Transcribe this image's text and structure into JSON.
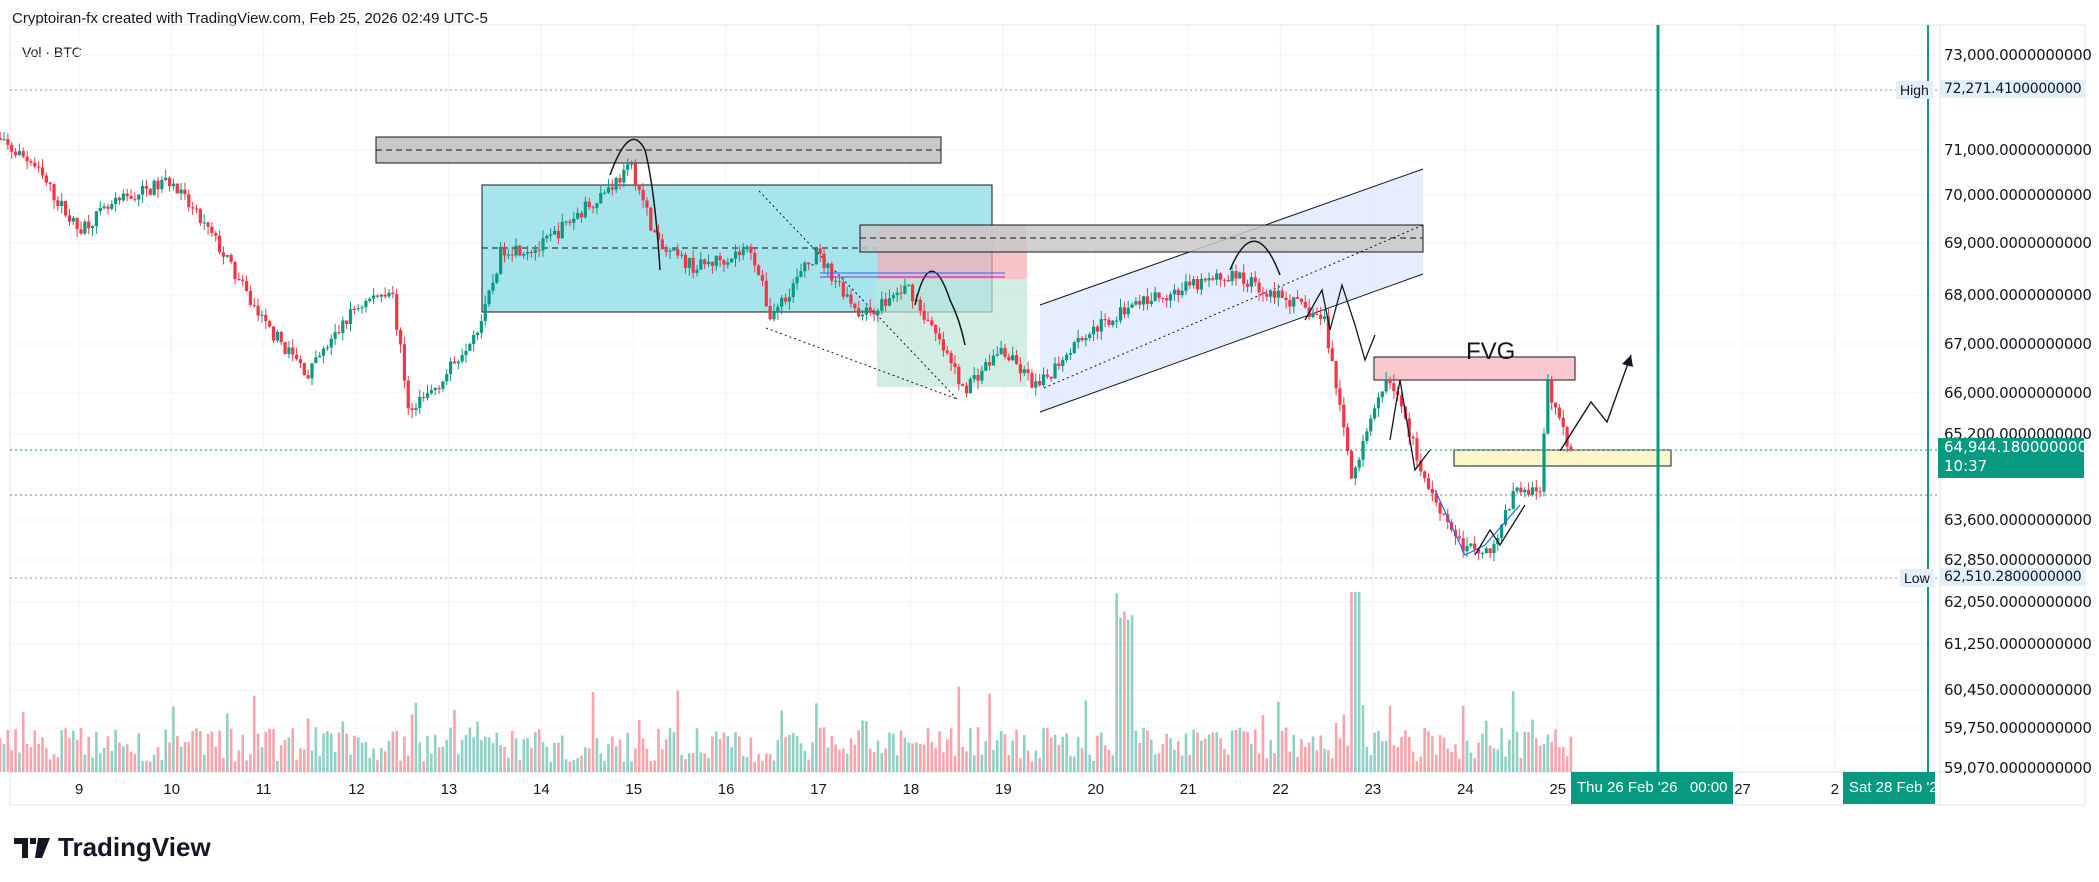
{
  "header": {
    "attribution": "Cryptoiran-fx created with TradingView.com, Feb 25, 2026 02:49 UTC-5",
    "legend": "Vol · BTC"
  },
  "brand": {
    "name": "TradingView"
  },
  "colors": {
    "up": "#089981",
    "down": "#f23645",
    "accent": "#089981"
  },
  "chart_data": {
    "type": "candlestick",
    "title": "Vol · BTC",
    "x_ticks": [
      "9",
      "10",
      "11",
      "12",
      "13",
      "14",
      "15",
      "16",
      "17",
      "18",
      "19",
      "20",
      "21",
      "22",
      "23",
      "24",
      "25",
      "27",
      "2"
    ],
    "x_tick_days": [
      9,
      10,
      11,
      12,
      13,
      14,
      15,
      16,
      17,
      18,
      19,
      20,
      21,
      22,
      23,
      24,
      25,
      27,
      28
    ],
    "y_ticks": [
      "73,000.0000000000",
      "71,000.0000000000",
      "70,000.0000000000",
      "69,000.0000000000",
      "68,000.0000000000",
      "67,000.0000000000",
      "66,000.0000000000",
      "65,200.0000000000",
      "63,600.0000000000",
      "62,850.0000000000",
      "62,050.0000000000",
      "61,250.0000000000",
      "60,450.0000000000",
      "59,750.0000000000",
      "59,070.0000000000"
    ],
    "high": {
      "label": "High",
      "value": "72,271.4100000000"
    },
    "low": {
      "label": "Low",
      "value": "62,510.2800000000"
    },
    "current": {
      "value": "64,944.1800000000",
      "countdown": "10:37"
    },
    "cursor_labels": {
      "thu": "Thu 26 Feb '26   00:00",
      "sat": "Sat 28 Feb '2"
    },
    "annotation": "FVG",
    "price_path": [
      [
        8.0,
        71370
      ],
      [
        8.5,
        70800
      ],
      [
        9.0,
        69400
      ],
      [
        9.5,
        70000
      ],
      [
        10.0,
        70400
      ],
      [
        10.5,
        69150
      ],
      [
        11.0,
        67500
      ],
      [
        11.5,
        66400
      ],
      [
        12.0,
        67750
      ],
      [
        12.4,
        68200
      ],
      [
        12.6,
        65550
      ],
      [
        13.0,
        66400
      ],
      [
        13.4,
        67600
      ],
      [
        13.6,
        69000
      ],
      [
        14.0,
        69000
      ],
      [
        14.5,
        69850
      ],
      [
        15.0,
        70670
      ],
      [
        15.3,
        69000
      ],
      [
        15.7,
        68600
      ],
      [
        16.3,
        69000
      ],
      [
        16.5,
        67600
      ],
      [
        17.0,
        68900
      ],
      [
        17.5,
        67600
      ],
      [
        18.0,
        68200
      ],
      [
        18.6,
        66100
      ],
      [
        19.0,
        66900
      ],
      [
        19.4,
        66100
      ],
      [
        19.8,
        67100
      ],
      [
        20.5,
        67900
      ],
      [
        21.5,
        68450
      ],
      [
        22.0,
        68050
      ],
      [
        22.5,
        67500
      ],
      [
        22.8,
        64300
      ],
      [
        23.2,
        66400
      ],
      [
        23.6,
        64150
      ],
      [
        24.0,
        62800
      ],
      [
        24.3,
        62800
      ],
      [
        24.6,
        64100
      ],
      [
        24.85,
        63900
      ],
      [
        24.9,
        66250
      ],
      [
        25.13,
        64944
      ]
    ]
  }
}
